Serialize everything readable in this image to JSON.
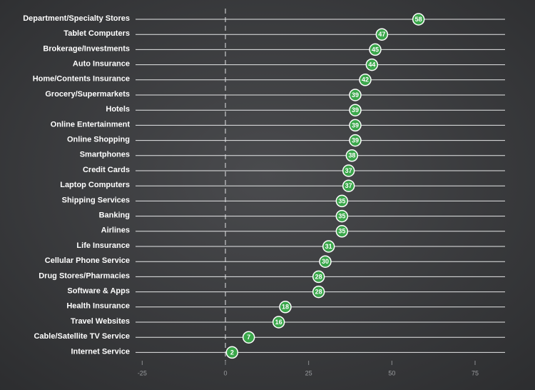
{
  "chart_data": {
    "type": "dot",
    "categories": [
      "Department/Specialty Stores",
      "Tablet Computers",
      "Brokerage/Investments",
      "Auto Insurance",
      "Home/Contents Insurance",
      "Grocery/Supermarkets",
      "Hotels",
      "Online Entertainment",
      "Online Shopping",
      "Smartphones",
      "Credit Cards",
      "Laptop Computers",
      "Shipping Services",
      "Banking",
      "Airlines",
      "Life Insurance",
      "Cellular Phone Service",
      "Drug Stores/Pharmacies",
      "Software & Apps",
      "Health Insurance",
      "Travel Websites",
      "Cable/Satellite TV Service",
      "Internet Service"
    ],
    "values": [
      58,
      47,
      45,
      44,
      42,
      39,
      39,
      39,
      39,
      38,
      37,
      37,
      35,
      35,
      35,
      31,
      30,
      28,
      28,
      18,
      16,
      7,
      2
    ],
    "color": "#3aa64a",
    "xlim": [
      -27,
      84
    ],
    "xticks": [
      -25,
      0,
      25,
      50,
      75
    ]
  }
}
